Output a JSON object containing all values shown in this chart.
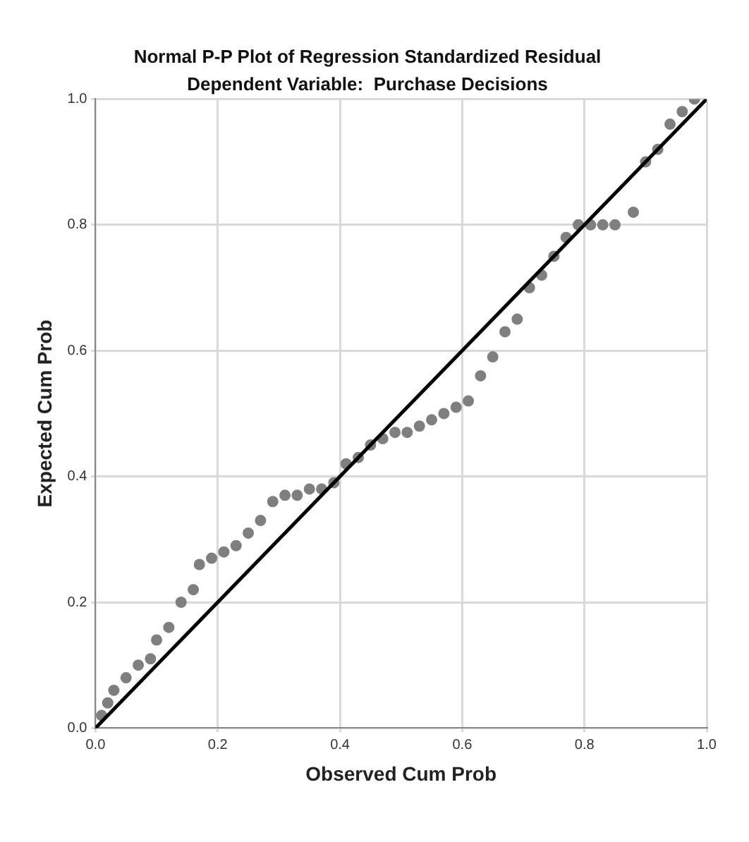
{
  "chart_data": {
    "type": "scatter",
    "title": "Normal P-P Plot of Regression Standardized Residual",
    "subtitle": "Dependent Variable:  Purchase Decisions",
    "xlabel": "Observed Cum Prob",
    "ylabel": "Expected Cum Prob",
    "xlim": [
      0,
      1
    ],
    "ylim": [
      0,
      1
    ],
    "xticks": [
      {
        "value": 0,
        "label": "0.0"
      },
      0.2,
      0.4,
      0.6,
      0.8,
      {
        "value": 1,
        "label": "1.0"
      }
    ],
    "yticks": [
      {
        "value": 0,
        "label": "0.0"
      },
      0.2,
      0.4,
      0.6,
      0.8,
      {
        "value": 1,
        "label": "1.0"
      }
    ],
    "grid": true,
    "legend": false,
    "series": [
      {
        "color": "#7f7f7f",
        "marker": "circle",
        "x": [
          0.01,
          0.02,
          0.03,
          0.05,
          0.07,
          0.09,
          0.1,
          0.12,
          0.14,
          0.16,
          0.17,
          0.19,
          0.21,
          0.23,
          0.25,
          0.27,
          0.29,
          0.31,
          0.33,
          0.35,
          0.37,
          0.39,
          0.41,
          0.43,
          0.45,
          0.47,
          0.49,
          0.51,
          0.53,
          0.55,
          0.57,
          0.59,
          0.61,
          0.63,
          0.65,
          0.67,
          0.69,
          0.71,
          0.73,
          0.75,
          0.77,
          0.79,
          0.81,
          0.83,
          0.85,
          0.88,
          0.9,
          0.92,
          0.94,
          0.96,
          0.98
        ],
        "values": [
          0.02,
          0.04,
          0.06,
          0.08,
          0.1,
          0.11,
          0.14,
          0.16,
          0.2,
          0.22,
          0.26,
          0.27,
          0.28,
          0.29,
          0.31,
          0.33,
          0.36,
          0.37,
          0.37,
          0.38,
          0.38,
          0.39,
          0.42,
          0.43,
          0.45,
          0.46,
          0.47,
          0.47,
          0.48,
          0.49,
          0.5,
          0.51,
          0.52,
          0.56,
          0.59,
          0.63,
          0.65,
          0.7,
          0.72,
          0.75,
          0.78,
          0.8,
          0.8,
          0.8,
          0.8,
          0.82,
          0.9,
          0.92,
          0.96,
          0.98,
          1.0
        ]
      },
      {
        "type": "line",
        "color": "#000000",
        "marker": "none",
        "x": [
          0,
          1
        ],
        "values": [
          0,
          1
        ]
      }
    ]
  }
}
